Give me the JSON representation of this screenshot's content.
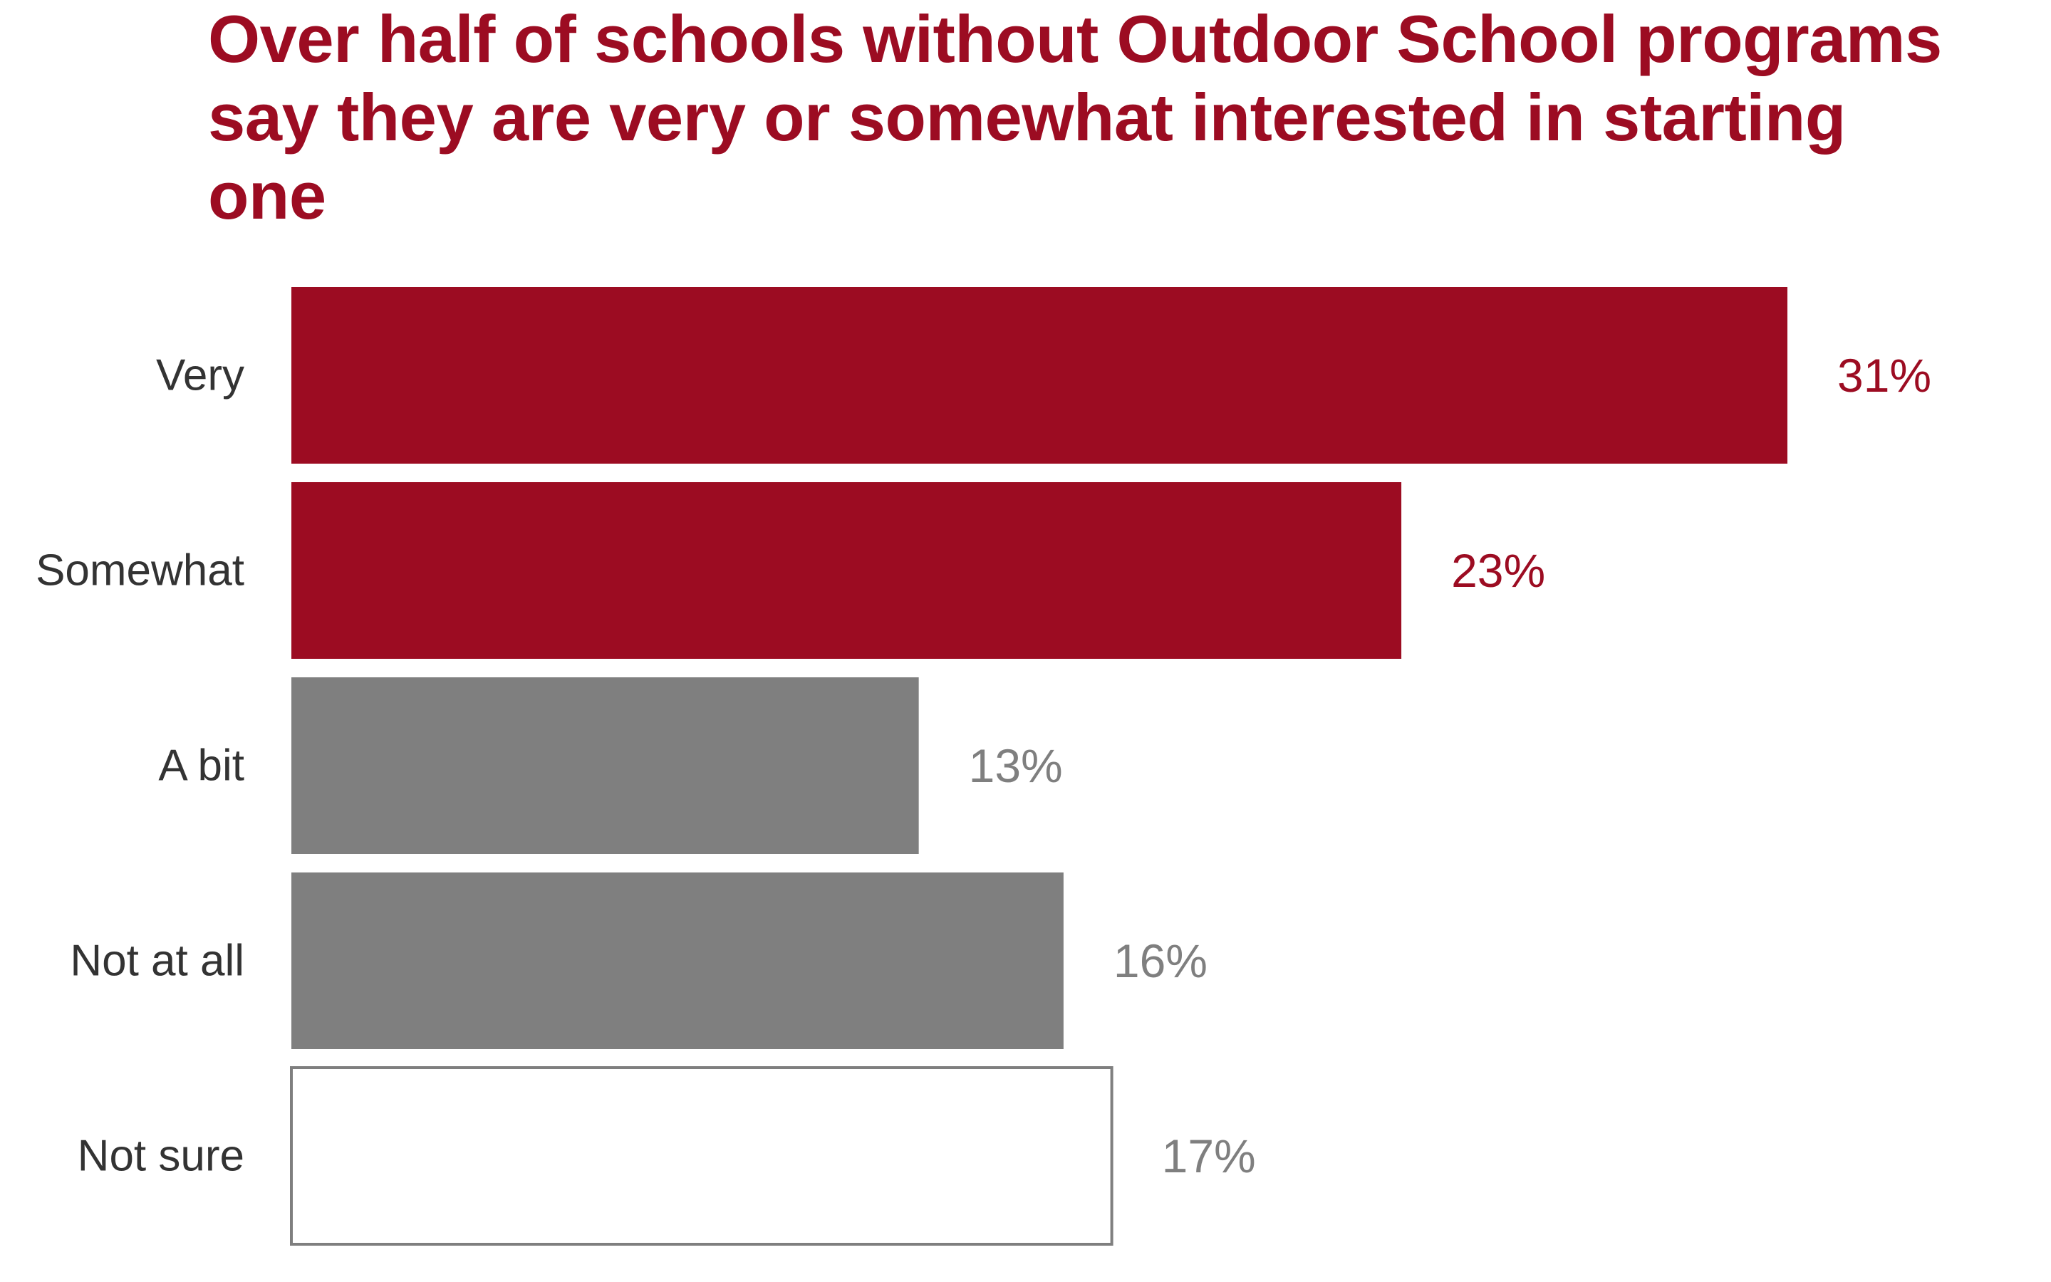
{
  "chart_data": {
    "type": "bar",
    "orientation": "horizontal",
    "title": "Over half of schools without Outdoor School programs say they are very or somewhat interested in starting one",
    "categories": [
      "Very",
      "Somewhat",
      "A bit",
      "Not at all",
      "Not sure"
    ],
    "values": [
      31,
      23,
      13,
      16,
      17
    ],
    "value_labels": [
      "31%",
      "23%",
      "13%",
      "16%",
      "17%"
    ],
    "unit": "%",
    "xlim": [
      0,
      31
    ],
    "grid": false,
    "legend": "none",
    "bar_styles": [
      {
        "fill": "#9c0c22",
        "stroke": "none",
        "label_color": "#9c0c22"
      },
      {
        "fill": "#9c0c22",
        "stroke": "none",
        "label_color": "#9c0c22"
      },
      {
        "fill": "#7f7f7f",
        "stroke": "none",
        "label_color": "#7f7f7f"
      },
      {
        "fill": "#7f7f7f",
        "stroke": "none",
        "label_color": "#7f7f7f"
      },
      {
        "fill": "#ffffff",
        "stroke": "#7f7f7f",
        "label_color": "#7f7f7f"
      }
    ]
  }
}
